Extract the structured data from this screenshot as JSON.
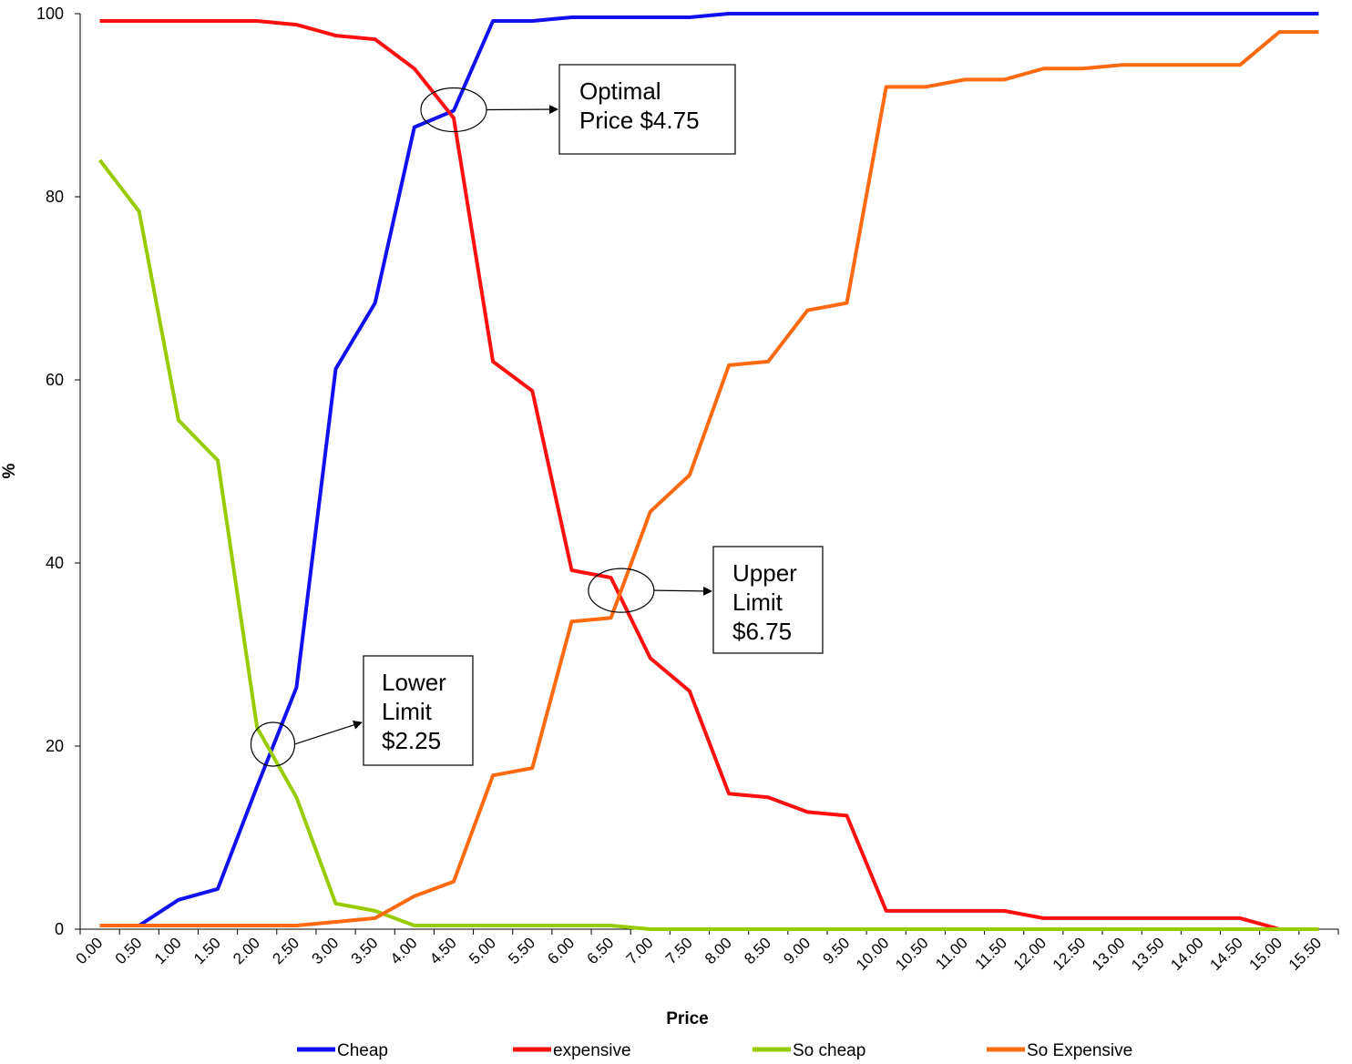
{
  "chart_data": {
    "type": "line",
    "xlabel": "Price",
    "ylabel": "%",
    "ylim": [
      0,
      100
    ],
    "yticks": [
      0,
      20,
      40,
      60,
      80,
      100
    ],
    "x_tick_labels": [
      "0.00",
      "0.50",
      "1.00",
      "1.50",
      "2.00",
      "2.50",
      "3.00",
      "3.50",
      "4.00",
      "4.50",
      "5.00",
      "5.50",
      "6.00",
      "6.50",
      "7.00",
      "7.50",
      "8.00",
      "8.50",
      "9.00",
      "9.50",
      "10.00",
      "10.50",
      "11.00",
      "11.50",
      "12.00",
      "12.50",
      "13.00",
      "13.50",
      "14.00",
      "14.50",
      "15.00",
      "15.50"
    ],
    "x": [
      0.25,
      0.75,
      1.25,
      1.75,
      2.25,
      2.75,
      3.25,
      3.75,
      4.25,
      4.75,
      5.25,
      5.75,
      6.25,
      6.75,
      7.25,
      7.75,
      8.25,
      8.75,
      9.25,
      9.75,
      10.25,
      10.75,
      11.25,
      11.75,
      12.25,
      12.75,
      13.25,
      13.75,
      14.25,
      14.75,
      15.25,
      15.75
    ],
    "grid": false,
    "legend_position": "bottom",
    "series": [
      {
        "name": "Cheap",
        "color": "#1010f0",
        "values": [
          0.4,
          0.4,
          3.2,
          4.4,
          15.6,
          26.4,
          61.2,
          68.4,
          87.6,
          89.4,
          99.2,
          99.2,
          99.6,
          99.6,
          99.6,
          99.6,
          100,
          100,
          100,
          100,
          100,
          100,
          100,
          100,
          100,
          100,
          100,
          100,
          100,
          100,
          100,
          100
        ]
      },
      {
        "name": "expensive",
        "color": "#ff1010",
        "values": [
          99.2,
          99.2,
          99.2,
          99.2,
          99.2,
          98.8,
          97.6,
          97.2,
          94.0,
          88.6,
          62.0,
          58.8,
          39.2,
          38.4,
          29.6,
          26.0,
          14.8,
          14.4,
          12.8,
          12.4,
          2.0,
          2.0,
          2.0,
          2.0,
          1.2,
          1.2,
          1.2,
          1.2,
          1.2,
          1.2,
          0.0,
          0.0
        ]
      },
      {
        "name": "So cheap",
        "color": "#99cc00",
        "values": [
          84.0,
          78.4,
          55.6,
          51.2,
          22.0,
          14.4,
          2.8,
          2.0,
          0.4,
          0.4,
          0.4,
          0.4,
          0.4,
          0.4,
          0.0,
          0.0,
          0.0,
          0.0,
          0.0,
          0.0,
          0.0,
          0.0,
          0.0,
          0.0,
          0.0,
          0.0,
          0.0,
          0.0,
          0.0,
          0.0,
          0.0,
          0.0
        ]
      },
      {
        "name": "So Expensive",
        "color": "#ff6a10",
        "values": [
          0.4,
          0.4,
          0.4,
          0.4,
          0.4,
          0.4,
          0.8,
          1.2,
          3.6,
          5.2,
          16.8,
          17.6,
          33.6,
          34.0,
          45.6,
          49.6,
          61.6,
          62.0,
          67.6,
          68.4,
          92.0,
          92.0,
          92.8,
          92.8,
          94.0,
          94.0,
          94.4,
          94.4,
          94.4,
          94.4,
          98.0,
          98.0
        ]
      }
    ],
    "annotations": [
      {
        "name": "optimal-price",
        "lines": [
          "Optimal",
          "Price $4.75"
        ],
        "x": 4.75,
        "y": 89.5
      },
      {
        "name": "upper-limit",
        "lines": [
          "Upper",
          "Limit",
          "$6.75"
        ],
        "x": 6.88,
        "y": 37.0
      },
      {
        "name": "lower-limit",
        "lines": [
          "Lower",
          "Limit",
          "$2.25"
        ],
        "x": 2.45,
        "y": 20.2
      }
    ]
  }
}
